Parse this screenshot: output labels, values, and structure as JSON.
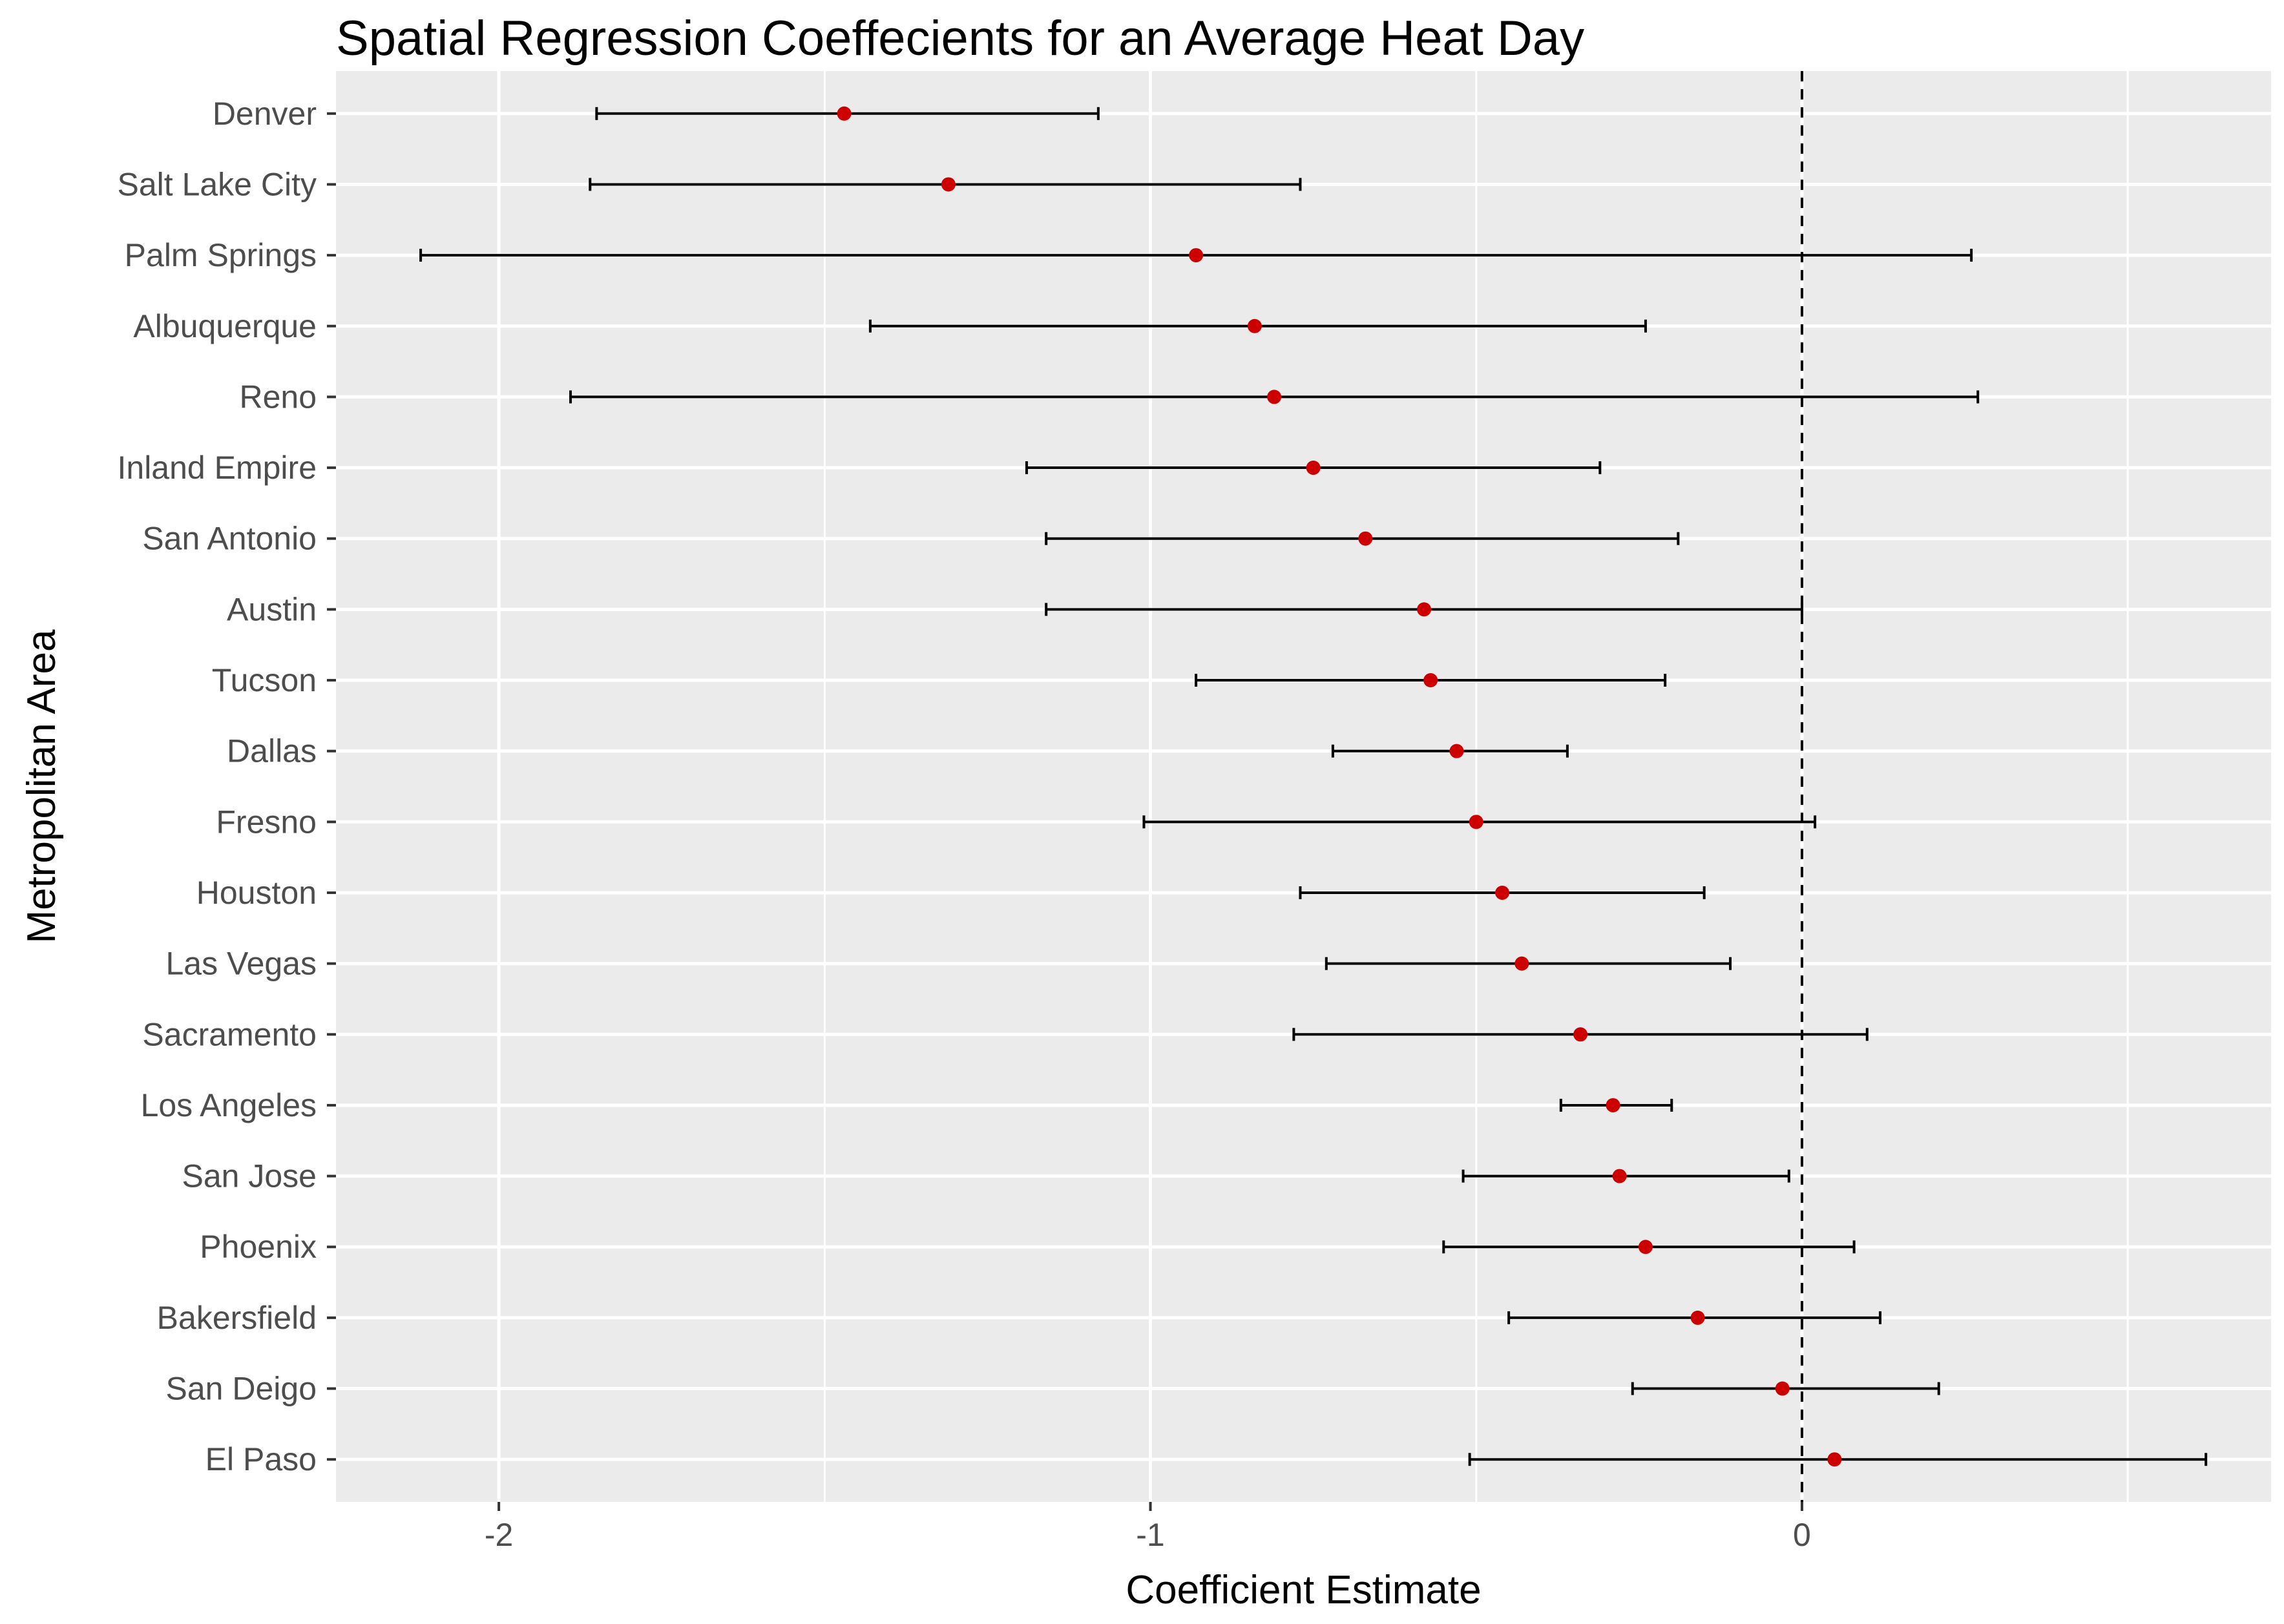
{
  "chart_data": {
    "type": "scatter",
    "subtype": "coefficient-plot-with-error-bars",
    "title": "Spatial Regression Coeffecients for an Average Heat Day",
    "xlabel": "Coefficient Estimate",
    "ylabel": "Metropolitan Area",
    "xlim": [
      -2.25,
      0.72
    ],
    "xticks": [
      -2,
      -1,
      0
    ],
    "xtick_labels": [
      "-2",
      "-1",
      "0"
    ],
    "reference_line": {
      "x": 0,
      "style": "dashed"
    },
    "grid": true,
    "categories": [
      "Denver",
      "Salt Lake City",
      "Palm Springs",
      "Albuquerque",
      "Reno",
      "Inland Empire",
      "San Antonio",
      "Austin",
      "Tucson",
      "Dallas",
      "Fresno",
      "Houston",
      "Las Vegas",
      "Sacramento",
      "Los Angeles",
      "San Jose",
      "Phoenix",
      "Bakersfield",
      "San Deigo",
      "El Paso"
    ],
    "estimates": [
      -1.47,
      -1.31,
      -0.93,
      -0.84,
      -0.81,
      -0.75,
      -0.67,
      -0.58,
      -0.57,
      -0.53,
      -0.5,
      -0.46,
      -0.43,
      -0.34,
      -0.29,
      -0.28,
      -0.24,
      -0.16,
      -0.03,
      0.05
    ],
    "lower": [
      -1.85,
      -1.86,
      -2.12,
      -1.43,
      -1.89,
      -1.19,
      -1.16,
      -1.16,
      -0.93,
      -0.72,
      -1.01,
      -0.77,
      -0.73,
      -0.78,
      -0.37,
      -0.52,
      -0.55,
      -0.45,
      -0.26,
      -0.51
    ],
    "upper": [
      -1.08,
      -0.77,
      0.26,
      -0.24,
      0.27,
      -0.31,
      -0.19,
      0.0,
      -0.21,
      -0.36,
      0.02,
      -0.15,
      -0.11,
      0.1,
      -0.2,
      -0.02,
      0.08,
      0.12,
      0.21,
      0.62
    ],
    "colors": {
      "panel_background": "#ebebeb",
      "gridline": "#ffffff",
      "point": "#cc0000",
      "errorbar": "#000000",
      "reference_line": "#000000",
      "tick_text": "#4d4d4d"
    }
  }
}
